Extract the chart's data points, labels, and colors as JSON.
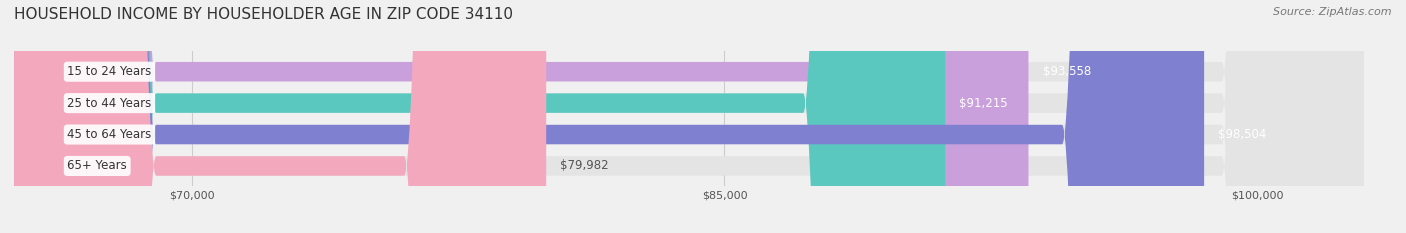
{
  "title": "HOUSEHOLD INCOME BY HOUSEHOLDER AGE IN ZIP CODE 34110",
  "source": "Source: ZipAtlas.com",
  "categories": [
    "15 to 24 Years",
    "25 to 44 Years",
    "45 to 64 Years",
    "65+ Years"
  ],
  "values": [
    93558,
    91215,
    98504,
    79982
  ],
  "bar_colors": [
    "#c9a0dc",
    "#5bc8c0",
    "#8080d0",
    "#f4a8be"
  ],
  "value_label_colors": [
    "white",
    "white",
    "white",
    "#555555"
  ],
  "value_labels": [
    "$93,558",
    "$91,215",
    "$98,504",
    "$79,982"
  ],
  "xlim": [
    65000,
    103000
  ],
  "xticks": [
    70000,
    85000,
    100000
  ],
  "xtick_labels": [
    "$70,000",
    "$85,000",
    "$100,000"
  ],
  "background_color": "#f0f0f0",
  "bar_background_color": "#e4e4e4",
  "title_fontsize": 11,
  "source_fontsize": 8,
  "label_fontsize": 8.5,
  "value_fontsize": 8.5
}
